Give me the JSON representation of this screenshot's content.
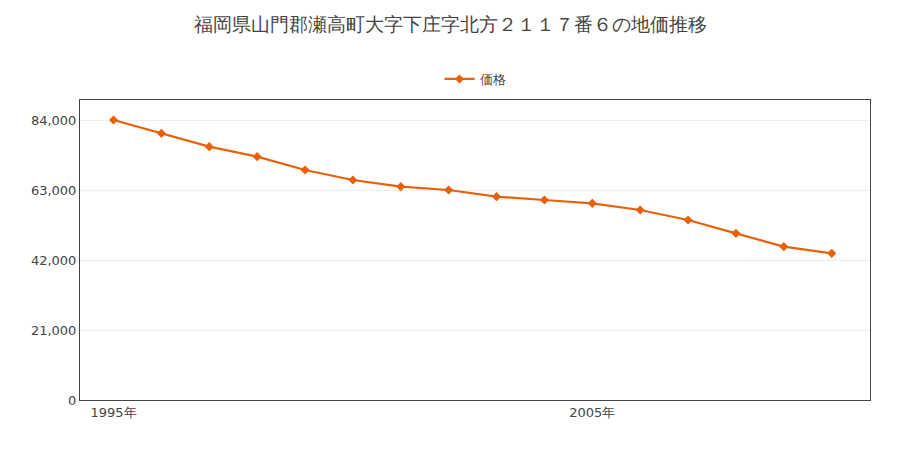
{
  "chart_data": {
    "type": "line",
    "title": "福岡県山門郡瀬高町大字下庄字北方２１１７番６の地価推移",
    "x": [
      1995,
      1996,
      1997,
      1998,
      1999,
      2000,
      2001,
      2002,
      2003,
      2004,
      2005,
      2006,
      2007,
      2008,
      2009,
      2010
    ],
    "series": [
      {
        "name": "価格",
        "color": "#E8600A",
        "marker": "diamond",
        "line_style": "solid",
        "values": [
          84000,
          80000,
          76000,
          73000,
          69000,
          66000,
          64000,
          63000,
          61000,
          60000,
          59000,
          57000,
          54000,
          50000,
          46000,
          44000
        ]
      }
    ],
    "xlim": [
      1994.3,
      2010.8
    ],
    "xticks": [
      {
        "value": 1995,
        "label": "1995年"
      },
      {
        "value": 2005,
        "label": "2005年"
      }
    ],
    "ylim": [
      0,
      90000
    ],
    "yticks": [
      0,
      {
        "value": 21000,
        "label": "21,000"
      },
      {
        "value": 42000,
        "label": "42,000"
      },
      {
        "value": 63000,
        "label": "63,000"
      },
      {
        "value": 84000,
        "label": "84,000"
      }
    ],
    "grid": true,
    "legend": "top"
  }
}
